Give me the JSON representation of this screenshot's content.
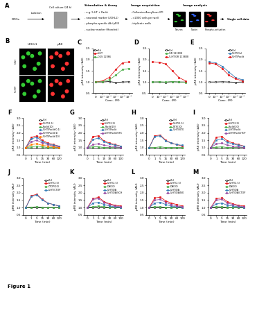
{
  "figure_label": "Figure 1",
  "panel_A": {
    "label": "A",
    "nodes": [
      {
        "label": "DRGs"
      },
      {
        "label": "Isolation"
      },
      {
        "label": "Cell culture (24 h)"
      },
      {
        "label": "Stimulation & Assay",
        "items": [
          "- e.g. 5-HT + Paclit",
          "- neuronal marker (UCHL1)",
          "- phospho-specific Ab (pRII)",
          "- nuclear marker (Hoechst)"
        ]
      },
      {
        "label": "Image acquisition",
        "items": [
          "- Cellomics ArrayScan VTI",
          "- >2000 cells per well",
          "- triplicate wells"
        ]
      },
      {
        "label": "Image analysis",
        "items": [
          "Neuron",
          "Nuclei",
          "Phospho-activation"
        ]
      },
      {
        "label": "Single cell data"
      }
    ]
  },
  "panel_B": {
    "label": "B",
    "columns": [
      "UCHL1",
      "pRII"
    ],
    "rows": [
      "Ctrl",
      "5-HT"
    ]
  },
  "chart_data": [
    {
      "panel": "C",
      "type": "line",
      "x_label": "Conc. (M)",
      "y_label": "pRII intensity (AU)",
      "categories": [
        "0",
        "10⁻⁹",
        "10⁻⁸",
        "10⁻⁷",
        "10⁻⁶",
        "10⁻⁵"
      ],
      "ylim": [
        0.5,
        2.5
      ],
      "yticks": [
        0.5,
        1.0,
        1.5,
        2.0,
        2.5
      ],
      "legend": "upper left",
      "series": [
        {
          "name": "Ctrl",
          "color": "#000000",
          "marker": "open circle",
          "values": [
            1.0,
            1.0,
            1.02,
            0.98,
            1.0,
            1.01
          ]
        },
        {
          "name": "5-HT",
          "color": "#e41a1c",
          "marker": "circle",
          "values": [
            1.0,
            1.05,
            1.2,
            1.55,
            1.85,
            1.9
          ]
        },
        {
          "name": "CGS 12066",
          "color": "#4daf4a",
          "marker": "circle",
          "values": [
            1.0,
            1.02,
            1.1,
            1.3,
            1.55,
            1.6
          ]
        }
      ]
    },
    {
      "panel": "D",
      "type": "line",
      "x_label": "Conc. (M)",
      "y_label": "pRII intensity (AU)",
      "categories": [
        "0",
        "10⁻⁹",
        "10⁻⁸",
        "10⁻⁷",
        "10⁻⁶",
        "10⁻⁵"
      ],
      "ylim": [
        0.5,
        2.5
      ],
      "yticks": [
        0.5,
        1.0,
        1.5,
        2.0,
        2.5
      ],
      "legend": "upper right",
      "series": [
        {
          "name": "Ctrl",
          "color": "#000000",
          "marker": "open circle",
          "values": [
            1.0,
            1.0,
            0.99,
            1.01,
            1.0,
            1.0
          ]
        },
        {
          "name": "GR 113808",
          "color": "#4daf4a",
          "marker": "circle",
          "values": [
            1.0,
            1.01,
            1.0,
            1.02,
            1.0,
            0.99
          ]
        },
        {
          "name": "5-HT/GR 113808",
          "color": "#e41a1c",
          "marker": "circle",
          "values": [
            1.9,
            1.88,
            1.8,
            1.5,
            1.2,
            1.05
          ]
        }
      ]
    },
    {
      "panel": "E",
      "type": "line",
      "x_label": "Conc. (M)",
      "y_label": "pRII intensity (AU)",
      "categories": [
        "0",
        "10⁻⁹",
        "10⁻⁸",
        "10⁻⁷",
        "10⁻⁶",
        "10⁻⁵"
      ],
      "ylim": [
        0.5,
        2.5
      ],
      "yticks": [
        0.5,
        1.0,
        1.5,
        2.0,
        2.5
      ],
      "legend": "upper right",
      "series": [
        {
          "name": "Ctrl",
          "color": "#000000",
          "marker": "open circle",
          "values": [
            1.0,
            1.0,
            1.01,
            1.0,
            0.99,
            1.0
          ]
        },
        {
          "name": "5-HT/Ctrl",
          "color": "#377eb8",
          "marker": "circle",
          "values": [
            1.9,
            1.85,
            1.7,
            1.45,
            1.2,
            1.1
          ]
        },
        {
          "name": "5-HT/Paclit",
          "color": "#e41a1c",
          "marker": "circle",
          "values": [
            1.85,
            1.8,
            1.6,
            1.3,
            1.15,
            1.05
          ]
        }
      ]
    },
    {
      "panel": "F",
      "type": "line",
      "x_label": "Time (min)",
      "y_label": "pRII intensity (AU)",
      "categories": [
        "0",
        "1",
        "5",
        "15",
        "30",
        "60",
        "120"
      ],
      "ylim": [
        0.5,
        3.0
      ],
      "yticks": [
        0.5,
        1.0,
        1.5,
        2.0,
        2.5,
        3.0
      ],
      "legend": "upper right",
      "series": [
        {
          "name": "Ctrl",
          "color": "#000000",
          "marker": "open circle",
          "values": [
            1.0,
            1.0,
            1.0,
            1.0,
            1.0,
            1.0,
            1.0
          ]
        },
        {
          "name": "5-HT(2.5)",
          "color": "#e41a1c",
          "marker": "circle",
          "values": [
            1.0,
            1.7,
            1.8,
            1.5,
            1.3,
            1.2,
            1.1
          ]
        },
        {
          "name": "Paclit(10)",
          "color": "#4daf4a",
          "marker": "circle",
          "values": [
            1.0,
            1.05,
            1.1,
            1.05,
            1.0,
            1.0,
            1.0
          ]
        },
        {
          "name": "5-HT/Paclit(0.1)",
          "color": "#377eb8",
          "marker": "circle",
          "values": [
            1.0,
            1.6,
            1.7,
            1.4,
            1.25,
            1.15,
            1.1
          ]
        },
        {
          "name": "5-HT/Paclit(1)",
          "color": "#984ea3",
          "marker": "circle",
          "values": [
            1.0,
            1.4,
            1.5,
            1.3,
            1.2,
            1.1,
            1.05
          ]
        },
        {
          "name": "5-HT/Paclit(10)",
          "color": "#ff7f00",
          "marker": "circle",
          "values": [
            1.0,
            1.2,
            1.25,
            1.15,
            1.1,
            1.05,
            1.0
          ]
        }
      ]
    },
    {
      "panel": "G",
      "type": "line",
      "x_label": "Time (min)",
      "y_label": "pRII intensity (AU)",
      "categories": [
        "0",
        "1",
        "5",
        "15",
        "30",
        "60",
        "120"
      ],
      "ylim": [
        0.5,
        3.0
      ],
      "yticks": [
        0.5,
        1.0,
        1.5,
        2.0,
        2.5,
        3.0
      ],
      "legend": "upper right",
      "series": [
        {
          "name": "Ctrl",
          "color": "#000000",
          "marker": "open circle",
          "values": [
            1.0,
            1.0,
            1.0,
            1.0,
            1.0,
            1.0,
            1.0
          ]
        },
        {
          "name": "5-HT(2.5)",
          "color": "#e41a1c",
          "marker": "circle",
          "values": [
            1.0,
            1.75,
            1.8,
            1.45,
            1.3,
            1.2,
            1.1
          ]
        },
        {
          "name": "Paclit(10)",
          "color": "#4daf4a",
          "marker": "circle",
          "values": [
            1.0,
            1.05,
            1.05,
            1.0,
            1.0,
            1.0,
            1.0
          ]
        },
        {
          "name": "5-HT/Paclit",
          "color": "#377eb8",
          "marker": "circle",
          "values": [
            1.0,
            1.55,
            1.65,
            1.4,
            1.25,
            1.15,
            1.1
          ]
        },
        {
          "name": "5-HT/Paclit/STX",
          "color": "#984ea3",
          "marker": "circle",
          "values": [
            1.0,
            1.2,
            1.25,
            1.15,
            1.1,
            1.05,
            1.0
          ]
        }
      ]
    },
    {
      "panel": "H",
      "type": "line",
      "x_label": "Time (min)",
      "y_label": "pRII intensity (AU)",
      "categories": [
        "0",
        "1",
        "5",
        "15",
        "30",
        "60",
        "120"
      ],
      "ylim": [
        0.5,
        3.0
      ],
      "yticks": [
        0.5,
        1.0,
        1.5,
        2.0,
        2.5,
        3.0
      ],
      "legend": "upper right",
      "series": [
        {
          "name": "Ctrl",
          "color": "#000000",
          "marker": "open circle",
          "values": [
            1.0,
            1.0,
            1.0,
            1.0,
            1.0,
            1.0,
            1.0
          ]
        },
        {
          "name": "5-HT(2.5)",
          "color": "#e41a1c",
          "marker": "circle",
          "values": [
            1.0,
            1.8,
            1.85,
            1.5,
            1.3,
            1.2,
            1.1
          ]
        },
        {
          "name": "NTX(10)",
          "color": "#4daf4a",
          "marker": "circle",
          "values": [
            1.0,
            1.0,
            1.05,
            1.0,
            1.0,
            1.0,
            1.0
          ]
        },
        {
          "name": "5-HT/NTX",
          "color": "#377eb8",
          "marker": "circle",
          "values": [
            1.0,
            1.75,
            1.8,
            1.45,
            1.3,
            1.2,
            1.15
          ]
        }
      ]
    },
    {
      "panel": "I",
      "type": "line",
      "x_label": "Time (min)",
      "y_label": "pRII intensity (AU)",
      "categories": [
        "0",
        "1",
        "5",
        "15",
        "30",
        "60",
        "120"
      ],
      "ylim": [
        0.5,
        3.0
      ],
      "yticks": [
        0.5,
        1.0,
        1.5,
        2.0,
        2.5,
        3.0
      ],
      "legend": "upper right",
      "series": [
        {
          "name": "Ctrl",
          "color": "#000000",
          "marker": "open circle",
          "values": [
            1.0,
            1.0,
            1.0,
            1.0,
            1.0,
            1.0,
            1.0
          ]
        },
        {
          "name": "5-HT(2.5)",
          "color": "#e41a1c",
          "marker": "circle",
          "values": [
            1.0,
            1.7,
            1.75,
            1.45,
            1.3,
            1.2,
            1.1
          ]
        },
        {
          "name": "Paclit(10)",
          "color": "#4daf4a",
          "marker": "circle",
          "values": [
            1.0,
            1.02,
            1.05,
            1.0,
            1.0,
            1.0,
            1.0
          ]
        },
        {
          "name": "5-HT/Paclit",
          "color": "#377eb8",
          "marker": "circle",
          "values": [
            1.0,
            1.5,
            1.6,
            1.35,
            1.25,
            1.15,
            1.1
          ]
        },
        {
          "name": "5-HT/Paclit/TCP",
          "color": "#984ea3",
          "marker": "circle",
          "values": [
            1.0,
            1.25,
            1.3,
            1.15,
            1.1,
            1.05,
            1.0
          ]
        }
      ]
    },
    {
      "panel": "J",
      "type": "line",
      "x_label": "Time (min)",
      "y_label": "pRII intensity (AU)",
      "categories": [
        "0",
        "1",
        "5",
        "15",
        "30",
        "60",
        "120"
      ],
      "ylim": [
        0.5,
        3.0
      ],
      "yticks": [
        0.5,
        1.0,
        1.5,
        2.0,
        2.5,
        3.0
      ],
      "legend": "upper right",
      "series": [
        {
          "name": "Ctrl",
          "color": "#000000",
          "marker": "open circle",
          "values": [
            1.0,
            1.0,
            1.0,
            1.0,
            1.0,
            1.0,
            1.0
          ]
        },
        {
          "name": "5-HT(2.5)",
          "color": "#e41a1c",
          "marker": "circle",
          "values": [
            1.0,
            1.8,
            1.9,
            1.55,
            1.3,
            1.2,
            1.1
          ]
        },
        {
          "name": "CTOP(10)",
          "color": "#4daf4a",
          "marker": "circle",
          "values": [
            1.0,
            1.02,
            1.05,
            1.0,
            1.0,
            1.0,
            1.0
          ]
        },
        {
          "name": "5-HT/CTOP",
          "color": "#377eb8",
          "marker": "circle",
          "values": [
            1.0,
            1.75,
            1.85,
            1.5,
            1.3,
            1.2,
            1.1
          ]
        }
      ]
    },
    {
      "panel": "K",
      "type": "line",
      "x_label": "Time (min)",
      "y_label": "pRII intensity (AU)",
      "categories": [
        "0",
        "1",
        "5",
        "15",
        "30",
        "60",
        "120"
      ],
      "ylim": [
        0.5,
        3.0
      ],
      "yticks": [
        0.5,
        1.0,
        1.5,
        2.0,
        2.5,
        3.0
      ],
      "legend": "upper right",
      "series": [
        {
          "name": "Ctrl",
          "color": "#000000",
          "marker": "open circle",
          "values": [
            1.0,
            1.0,
            1.0,
            1.0,
            1.0,
            1.0,
            1.0
          ]
        },
        {
          "name": "5-HT(2.5)",
          "color": "#e41a1c",
          "marker": "circle",
          "values": [
            1.0,
            1.6,
            1.7,
            1.4,
            1.25,
            1.15,
            1.1
          ]
        },
        {
          "name": "DA(10)",
          "color": "#4daf4a",
          "marker": "circle",
          "values": [
            1.0,
            1.05,
            1.1,
            1.05,
            1.0,
            1.0,
            1.0
          ]
        },
        {
          "name": "5-HT/DA",
          "color": "#377eb8",
          "marker": "circle",
          "values": [
            1.0,
            1.3,
            1.35,
            1.2,
            1.1,
            1.05,
            1.0
          ]
        },
        {
          "name": "5-HT/DA/SCH",
          "color": "#984ea3",
          "marker": "circle",
          "values": [
            1.0,
            1.55,
            1.6,
            1.35,
            1.2,
            1.1,
            1.05
          ]
        }
      ]
    },
    {
      "panel": "L",
      "type": "line",
      "x_label": "Time (min)",
      "y_label": "pRII intensity (AU)",
      "categories": [
        "0",
        "1",
        "5",
        "15",
        "30",
        "60",
        "120"
      ],
      "ylim": [
        0.5,
        3.0
      ],
      "yticks": [
        0.5,
        1.0,
        1.5,
        2.0,
        2.5,
        3.0
      ],
      "legend": "upper right",
      "series": [
        {
          "name": "Ctrl",
          "color": "#000000",
          "marker": "open circle",
          "values": [
            1.0,
            1.0,
            1.0,
            1.0,
            1.0,
            1.0,
            1.0
          ]
        },
        {
          "name": "5-HT(2.5)",
          "color": "#e41a1c",
          "marker": "circle",
          "values": [
            1.0,
            1.65,
            1.7,
            1.45,
            1.3,
            1.2,
            1.1
          ]
        },
        {
          "name": "DA(10)",
          "color": "#4daf4a",
          "marker": "circle",
          "values": [
            1.0,
            1.05,
            1.05,
            1.0,
            1.0,
            1.0,
            1.0
          ]
        },
        {
          "name": "5-HT/DA",
          "color": "#377eb8",
          "marker": "circle",
          "values": [
            1.0,
            1.3,
            1.35,
            1.2,
            1.1,
            1.05,
            1.0
          ]
        },
        {
          "name": "5-HT/DA/NX",
          "color": "#984ea3",
          "marker": "circle",
          "values": [
            1.0,
            1.5,
            1.55,
            1.35,
            1.2,
            1.1,
            1.05
          ]
        }
      ]
    },
    {
      "panel": "M",
      "type": "line",
      "x_label": "Time (min)",
      "y_label": "pRII intensity (AU)",
      "categories": [
        "0",
        "1",
        "5",
        "15",
        "30",
        "60",
        "120"
      ],
      "ylim": [
        0.5,
        3.0
      ],
      "yticks": [
        0.5,
        1.0,
        1.5,
        2.0,
        2.5,
        3.0
      ],
      "legend": "upper right",
      "series": [
        {
          "name": "Ctrl",
          "color": "#000000",
          "marker": "open circle",
          "values": [
            1.0,
            1.0,
            1.0,
            1.0,
            1.0,
            1.0,
            1.0
          ]
        },
        {
          "name": "5-HT(2.5)",
          "color": "#e41a1c",
          "marker": "circle",
          "values": [
            1.0,
            1.6,
            1.65,
            1.4,
            1.25,
            1.15,
            1.1
          ]
        },
        {
          "name": "DA(10)",
          "color": "#4daf4a",
          "marker": "circle",
          "values": [
            1.0,
            1.05,
            1.05,
            1.0,
            1.0,
            1.0,
            1.0
          ]
        },
        {
          "name": "5-HT/DA",
          "color": "#377eb8",
          "marker": "circle",
          "values": [
            1.0,
            1.25,
            1.3,
            1.15,
            1.1,
            1.05,
            1.0
          ]
        },
        {
          "name": "5-HT/DA/CTOP",
          "color": "#984ea3",
          "marker": "circle",
          "values": [
            1.0,
            1.5,
            1.55,
            1.3,
            1.2,
            1.1,
            1.05
          ]
        }
      ]
    }
  ]
}
